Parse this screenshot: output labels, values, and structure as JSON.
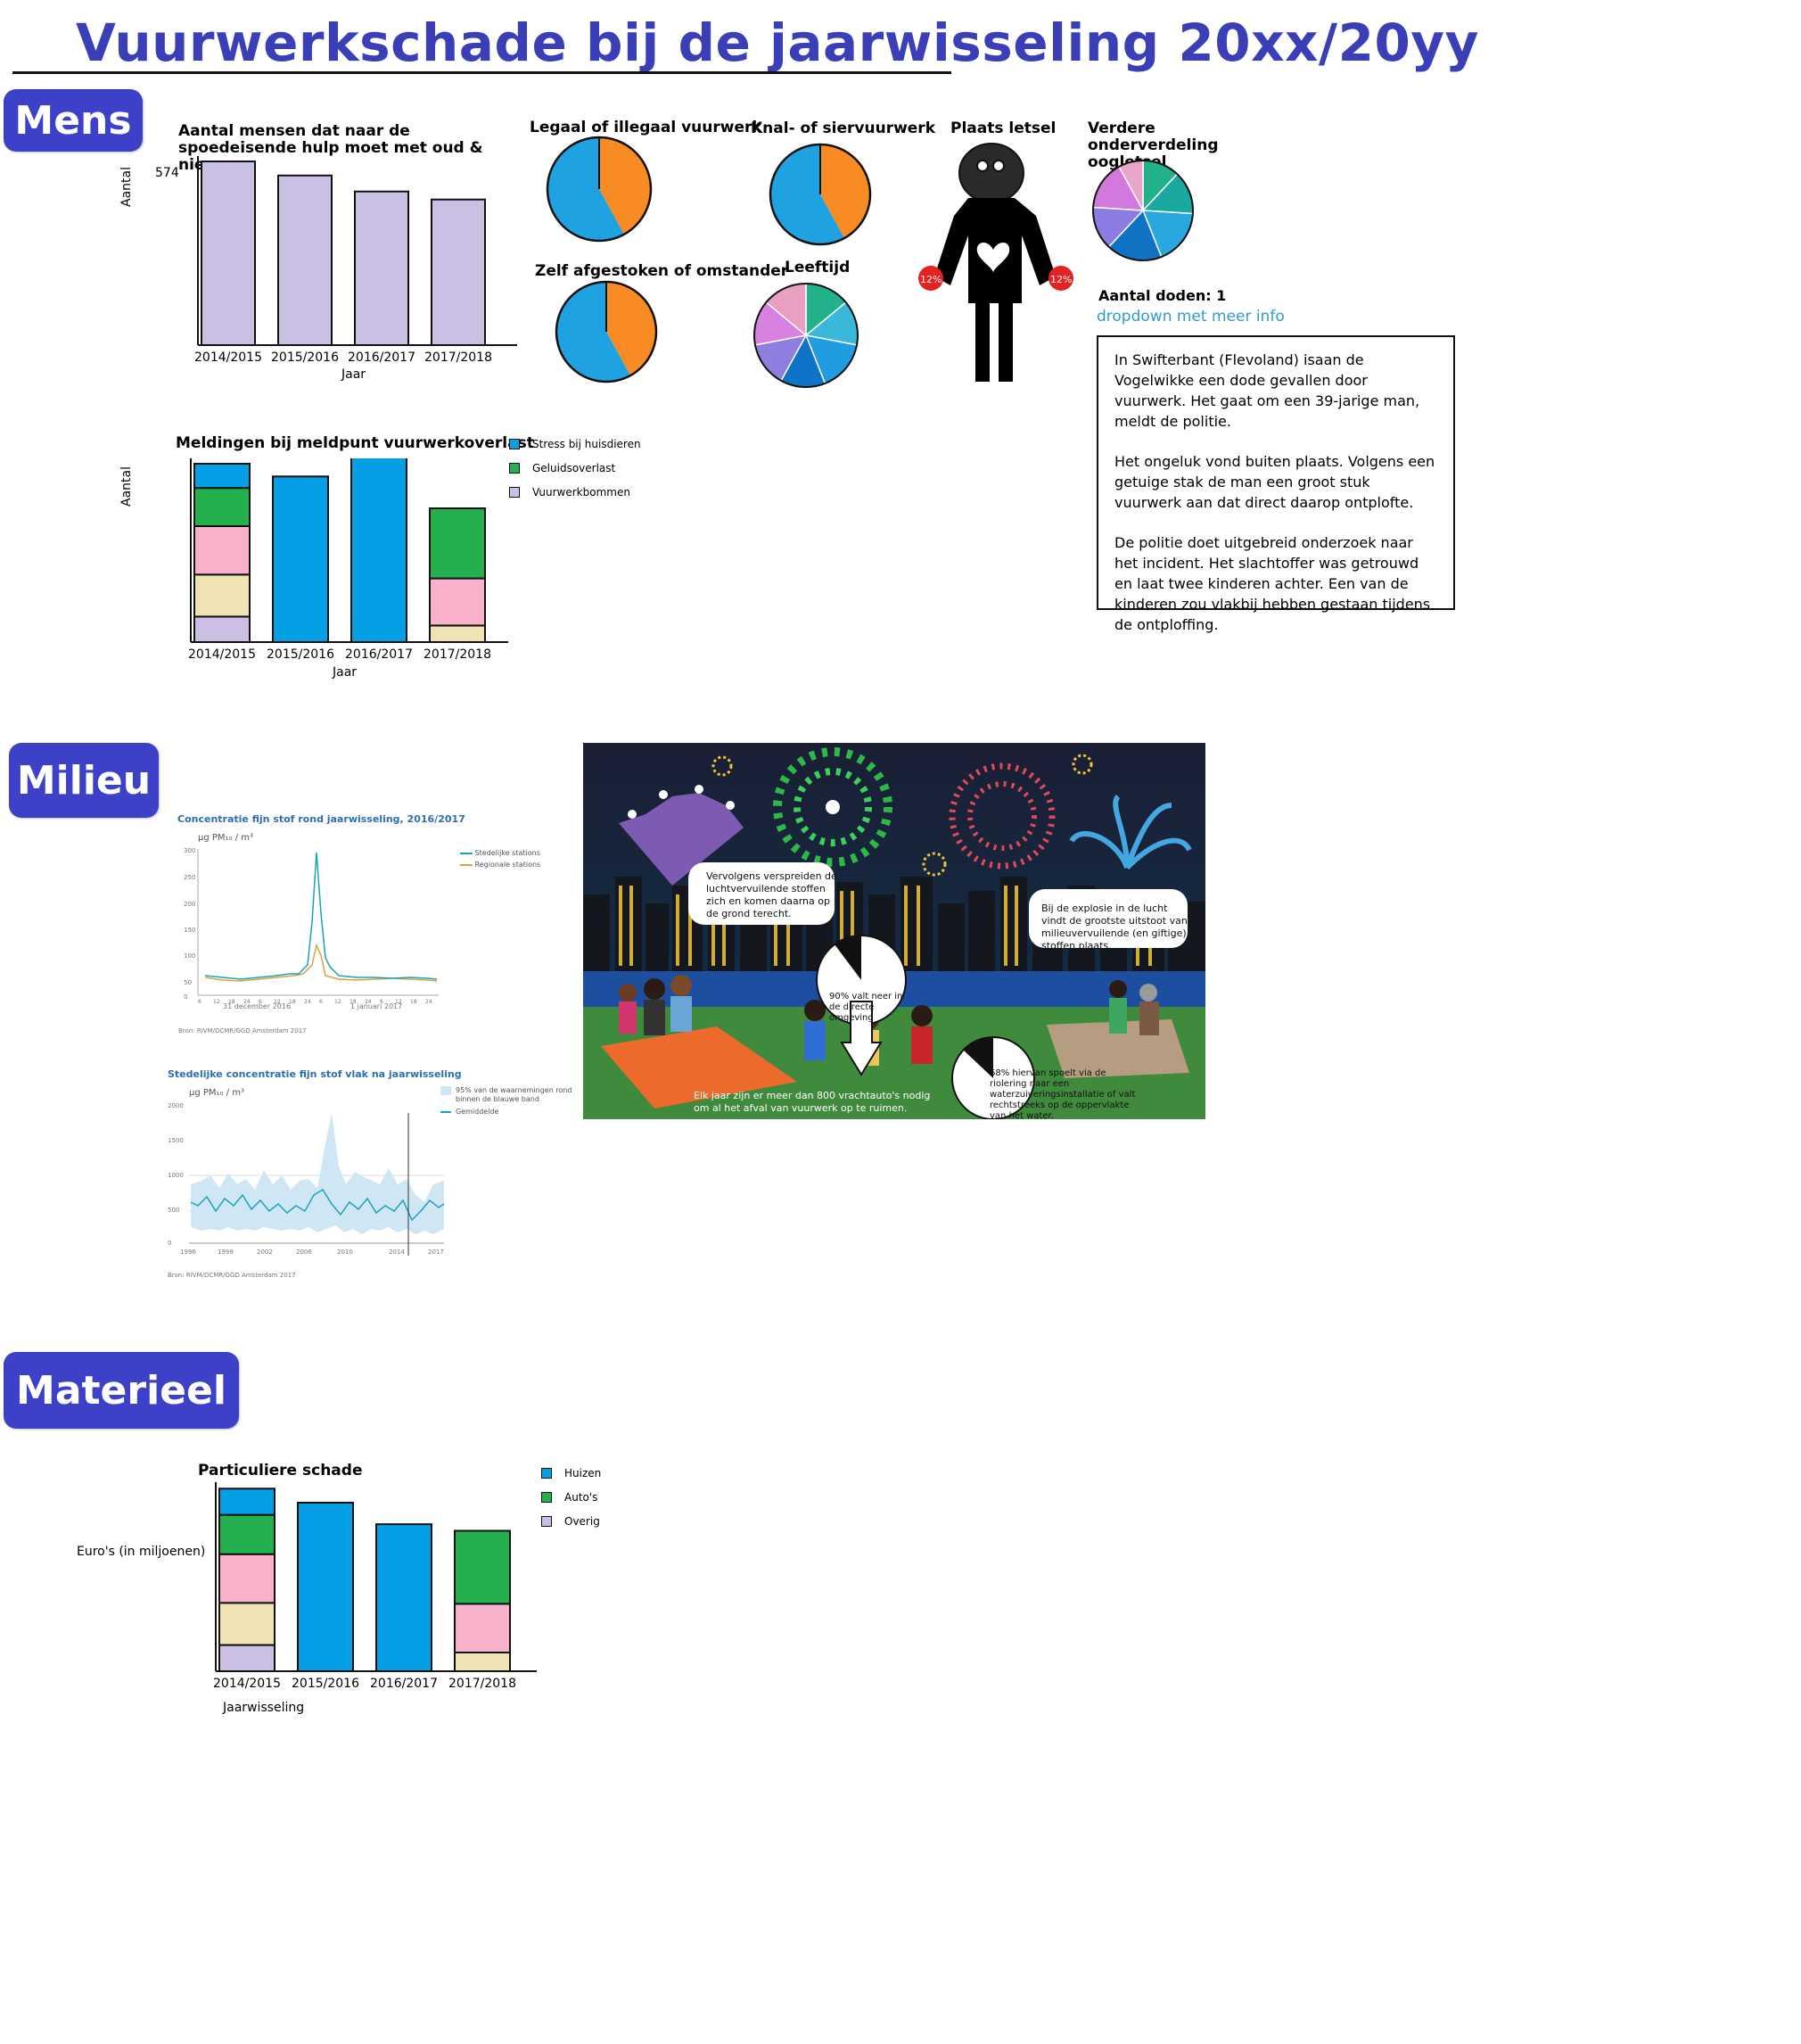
{
  "page": {
    "title": "Vuurwerkschade bij de jaarwisseling 20xx/20yy"
  },
  "colors": {
    "accent": "#3d41c8",
    "bar_lavender": "#c9c0e4",
    "blue": "#049fe4",
    "green": "#24b04e",
    "pink": "#f9b2cb",
    "beige": "#efe3b4",
    "lavender": "#cbbfe4",
    "pie_orange": "#f98b25",
    "pie_blue": "#1ea2e2",
    "link": "#2f9bd4"
  },
  "sections": {
    "mens": "Mens",
    "milieu": "Milieu",
    "materieel": "Materieel"
  },
  "mens": {
    "spoed_chart": {
      "title": "Aantal mensen dat naar de spoedeisende hulp moet met oud & nieuw",
      "ylabel": "Aantal",
      "xlabel": "Jaar",
      "max_label": "574"
    },
    "meldingen_chart": {
      "title": "Meldingen bij meldpunt vuurwerkoverlast",
      "ylabel": "Aantal",
      "xlabel": "Jaar",
      "legend": [
        "Stress bij huisdieren",
        "Geluidsoverlast",
        "Vuurwerkbommen"
      ]
    },
    "pies": {
      "legaal": "Legaal of illegaal vuurwerk",
      "knal": "Knal- of siervuurwerk",
      "zelf": "Zelf afgestoken of omstander",
      "leeftijd": "Leeftijd",
      "plaats": "Plaats letsel",
      "oog": "Verdere onderverdeling oogletsel",
      "hand_left": "12%",
      "hand_right": "12%"
    },
    "doden": {
      "label": "Aantal doden: 1",
      "dropdown": "dropdown met meer info",
      "paragraphs": [
        "In Swifterbant (Flevoland) isaan de Vogelwikke een dode gevallen door vuurwerk. Het gaat om een 39-jarige man, meldt de politie.",
        "Het ongeluk vond buiten plaats. Volgens een getuige stak de man een groot stuk vuurwerk aan dat direct daarop ontplofte.",
        "De politie doet uitgebreid onderzoek naar het incident. Het slachtoffer was getrouwd en laat twee kinderen achter. Een van de kinderen zou vlakbij hebben gestaan tijdens de ontploffing."
      ]
    }
  },
  "milieu": {
    "chart1": {
      "title": "Concentratie fijn stof rond jaarwisseling, 2016/2017",
      "unit": "µg PM₁₀ / m³",
      "legend": [
        "Stedelijke stations",
        "Regionale stations"
      ],
      "y_ticks": [
        "300",
        "250",
        "200",
        "150",
        "100",
        "50",
        "0"
      ],
      "x_ticks": [
        "6",
        "12",
        "18",
        "24",
        "6",
        "12",
        "18",
        "24",
        "6",
        "12",
        "18",
        "24",
        "6",
        "12",
        "18",
        "24"
      ],
      "x_dates": [
        "31 december 2016",
        "1 januari 2017"
      ],
      "source": "Bron: RIVM/DCMR/GGD Amsterdam 2017"
    },
    "chart2": {
      "title": "Stedelijke concentratie fijn stof vlak na jaarwisseling",
      "unit": "µg PM₁₀ / m³",
      "legend": [
        "95% van de waarnemingen rond binnen de blauwe band",
        "Gemiddelde"
      ],
      "y_ticks": [
        "2000",
        "1500",
        "1000",
        "500",
        "0"
      ],
      "x_ticks": [
        "1996",
        "1998",
        "2002",
        "2006",
        "2010",
        "2014",
        "2017"
      ],
      "source": "Bron: RIVM/DCMR/GGD Amsterdam 2017"
    },
    "illustration": {
      "bubble1": "Vervolgens verspreiden de luchtvervuilende stoffen zich en komen daarna op de grond terecht.",
      "bubble2": "Bij de explosie in de lucht vindt de grootste uitstoot van milieuvervuilende (en giftige) stoffen plaats.",
      "pie1": "90% valt neer in de directe omgeving",
      "pie2": "68% hiervan spoelt via de riolering naar een waterzuiveringsinstallatie of valt rechtstreeks op de oppervlakte van het water.",
      "caption": "Elk jaar zijn er meer dan 800 vrachtauto's nodig om al het afval van vuurwerk op te ruimen."
    }
  },
  "materieel": {
    "chart": {
      "title": "Particuliere schade",
      "ylabel": "Euro's (in miljoenen)",
      "xlabel": "Jaarwisseling",
      "legend": [
        "Huizen",
        "Auto's",
        "Overig"
      ]
    }
  },
  "chart_data": [
    {
      "type": "bar",
      "title": "Aantal mensen dat naar de spoedeisende hulp moet met oud & nieuw",
      "xlabel": "Jaar",
      "ylabel": "Aantal",
      "categories": [
        "2014/2015",
        "2015/2016",
        "2016/2017",
        "2017/2018"
      ],
      "values": [
        574,
        530,
        480,
        455
      ],
      "ylim": [
        0,
        574
      ]
    },
    {
      "type": "bar",
      "title": "Meldingen bij meldpunt vuurwerkoverlast",
      "xlabel": "Jaar",
      "ylabel": "Aantal",
      "categories": [
        "2014/2015",
        "2015/2016",
        "2016/2017",
        "2017/2018"
      ],
      "ylim": [
        0,
        140
      ],
      "segments": [
        [
          {
            "color": "lavender",
            "value": 20
          },
          {
            "color": "beige",
            "value": 33
          },
          {
            "color": "pink",
            "value": 38
          },
          {
            "color": "green",
            "value": 30
          },
          {
            "color": "blue",
            "value": 19
          }
        ],
        [
          {
            "color": "blue",
            "value": 130
          }
        ],
        [
          {
            "color": "blue",
            "value": 146
          }
        ],
        [
          {
            "color": "beige",
            "value": 13
          },
          {
            "color": "pink",
            "value": 37
          },
          {
            "color": "green",
            "value": 55
          }
        ]
      ]
    },
    {
      "type": "pie",
      "title": "Legaal of illegaal vuurwerk",
      "values": [
        42,
        58
      ],
      "colors": [
        "pie_orange",
        "pie_blue"
      ]
    },
    {
      "type": "pie",
      "title": "Knal- of siervuurwerk",
      "values": [
        42,
        58
      ],
      "colors": [
        "pie_orange",
        "pie_blue"
      ]
    },
    {
      "type": "pie",
      "title": "Zelf afgestoken of omstander",
      "values": [
        42,
        58
      ],
      "colors": [
        "pie_orange",
        "pie_blue"
      ]
    },
    {
      "type": "pie",
      "title": "Leeftijd",
      "values": [
        14,
        14,
        16,
        14,
        14,
        14,
        14
      ],
      "colors": [
        "#21b28c",
        "#39b8d9",
        "#1f9de0",
        "#0d74c7",
        "#8f7ee0",
        "#d981e0",
        "#e89fc2"
      ]
    },
    {
      "type": "pie",
      "title": "Verdere onderverdeling oogletsel",
      "values": [
        12,
        14,
        18,
        18,
        14,
        16,
        8
      ],
      "colors": [
        "#21b28c",
        "#1aa9a0",
        "#29a7df",
        "#0f72c4",
        "#8a7ce0",
        "#d378de",
        "#e9a6c9"
      ]
    },
    {
      "type": "bar",
      "title": "Particuliere schade",
      "xlabel": "Jaarwisseling",
      "ylabel": "Euro's (in miljoenen)",
      "categories": [
        "2014/2015",
        "2015/2016",
        "2016/2017",
        "2017/2018"
      ],
      "ylim": [
        0,
        200
      ],
      "segments": [
        [
          {
            "color": "lavender",
            "value": 28
          },
          {
            "color": "beige",
            "value": 45
          },
          {
            "color": "pink",
            "value": 52
          },
          {
            "color": "green",
            "value": 42
          },
          {
            "color": "blue",
            "value": 28
          }
        ],
        [
          {
            "color": "blue",
            "value": 180
          }
        ],
        [
          {
            "color": "blue",
            "value": 157
          }
        ],
        [
          {
            "color": "beige",
            "value": 20
          },
          {
            "color": "pink",
            "value": 52
          },
          {
            "color": "green",
            "value": 78
          }
        ]
      ]
    }
  ]
}
